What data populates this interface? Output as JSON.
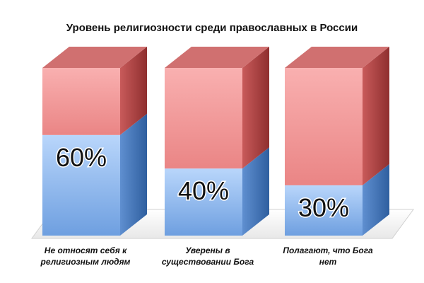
{
  "chart_data": {
    "type": "bar",
    "title": "Уровень религиозности среди православных в России",
    "categories": [
      [
        "Не относят себя к",
        "религиозным людям"
      ],
      [
        "Уверены в",
        "существовании Бога"
      ],
      [
        "Полагают, что Бога",
        "нет"
      ]
    ],
    "values": [
      60,
      40,
      30
    ],
    "value_labels": [
      "60%",
      "40%",
      "30%"
    ],
    "ylim": [
      0,
      100
    ],
    "stacked_remainder": true,
    "three_d": true,
    "grid": false,
    "legend": "none",
    "colors": {
      "value_front": "#9cc3f2",
      "value_side": "#4f7fbf",
      "value_top": "#7aa9e6",
      "remainder_front": "#f3a5a5",
      "remainder_side": "#b84a4a",
      "remainder_top": "#d07070",
      "floor": "#f2f2f2"
    }
  }
}
